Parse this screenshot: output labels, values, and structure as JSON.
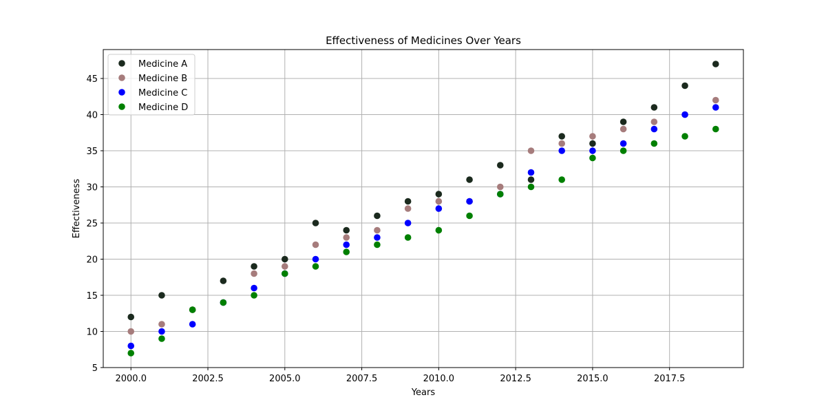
{
  "chart_data": {
    "type": "scatter",
    "title": "Effectiveness of Medicines Over Years",
    "xlabel": "Years",
    "ylabel": "Effectiveness",
    "xlim": [
      1999.1,
      2019.9
    ],
    "ylim": [
      5,
      49
    ],
    "xticks": [
      2000.0,
      2002.5,
      2005.0,
      2007.5,
      2010.0,
      2012.5,
      2015.0,
      2017.5
    ],
    "xtick_labels": [
      "2000.0",
      "2002.5",
      "2005.0",
      "2007.5",
      "2010.0",
      "2012.5",
      "2015.0",
      "2017.5"
    ],
    "yticks": [
      5,
      10,
      15,
      20,
      25,
      30,
      35,
      40,
      45
    ],
    "ytick_labels": [
      "5",
      "10",
      "15",
      "20",
      "25",
      "30",
      "35",
      "40",
      "45"
    ],
    "grid": true,
    "legend_position": "top-left",
    "x": [
      2000,
      2001,
      2002,
      2003,
      2004,
      2005,
      2006,
      2007,
      2008,
      2009,
      2010,
      2011,
      2012,
      2013,
      2014,
      2015,
      2016,
      2017,
      2018,
      2019
    ],
    "series": [
      {
        "name": "Medicine A",
        "color": "#1b2a1e",
        "values": [
          12,
          15,
          13,
          17,
          19,
          20,
          25,
          24,
          26,
          28,
          29,
          31,
          33,
          31,
          37,
          36,
          39,
          41,
          44,
          47
        ]
      },
      {
        "name": "Medicine B",
        "color": "#a67c7c",
        "values": [
          10,
          11,
          13,
          14,
          18,
          19,
          22,
          23,
          24,
          27,
          28,
          28,
          30,
          35,
          36,
          37,
          38,
          39,
          40,
          42
        ]
      },
      {
        "name": "Medicine C",
        "color": "#0000ff",
        "values": [
          8,
          10,
          11,
          14,
          16,
          18,
          20,
          22,
          23,
          25,
          27,
          28,
          29,
          32,
          35,
          35,
          36,
          38,
          40,
          41
        ]
      },
      {
        "name": "Medicine D",
        "color": "#008000",
        "values": [
          7,
          9,
          13,
          14,
          15,
          18,
          19,
          21,
          22,
          23,
          24,
          26,
          29,
          30,
          31,
          34,
          35,
          36,
          37,
          38
        ]
      }
    ]
  }
}
